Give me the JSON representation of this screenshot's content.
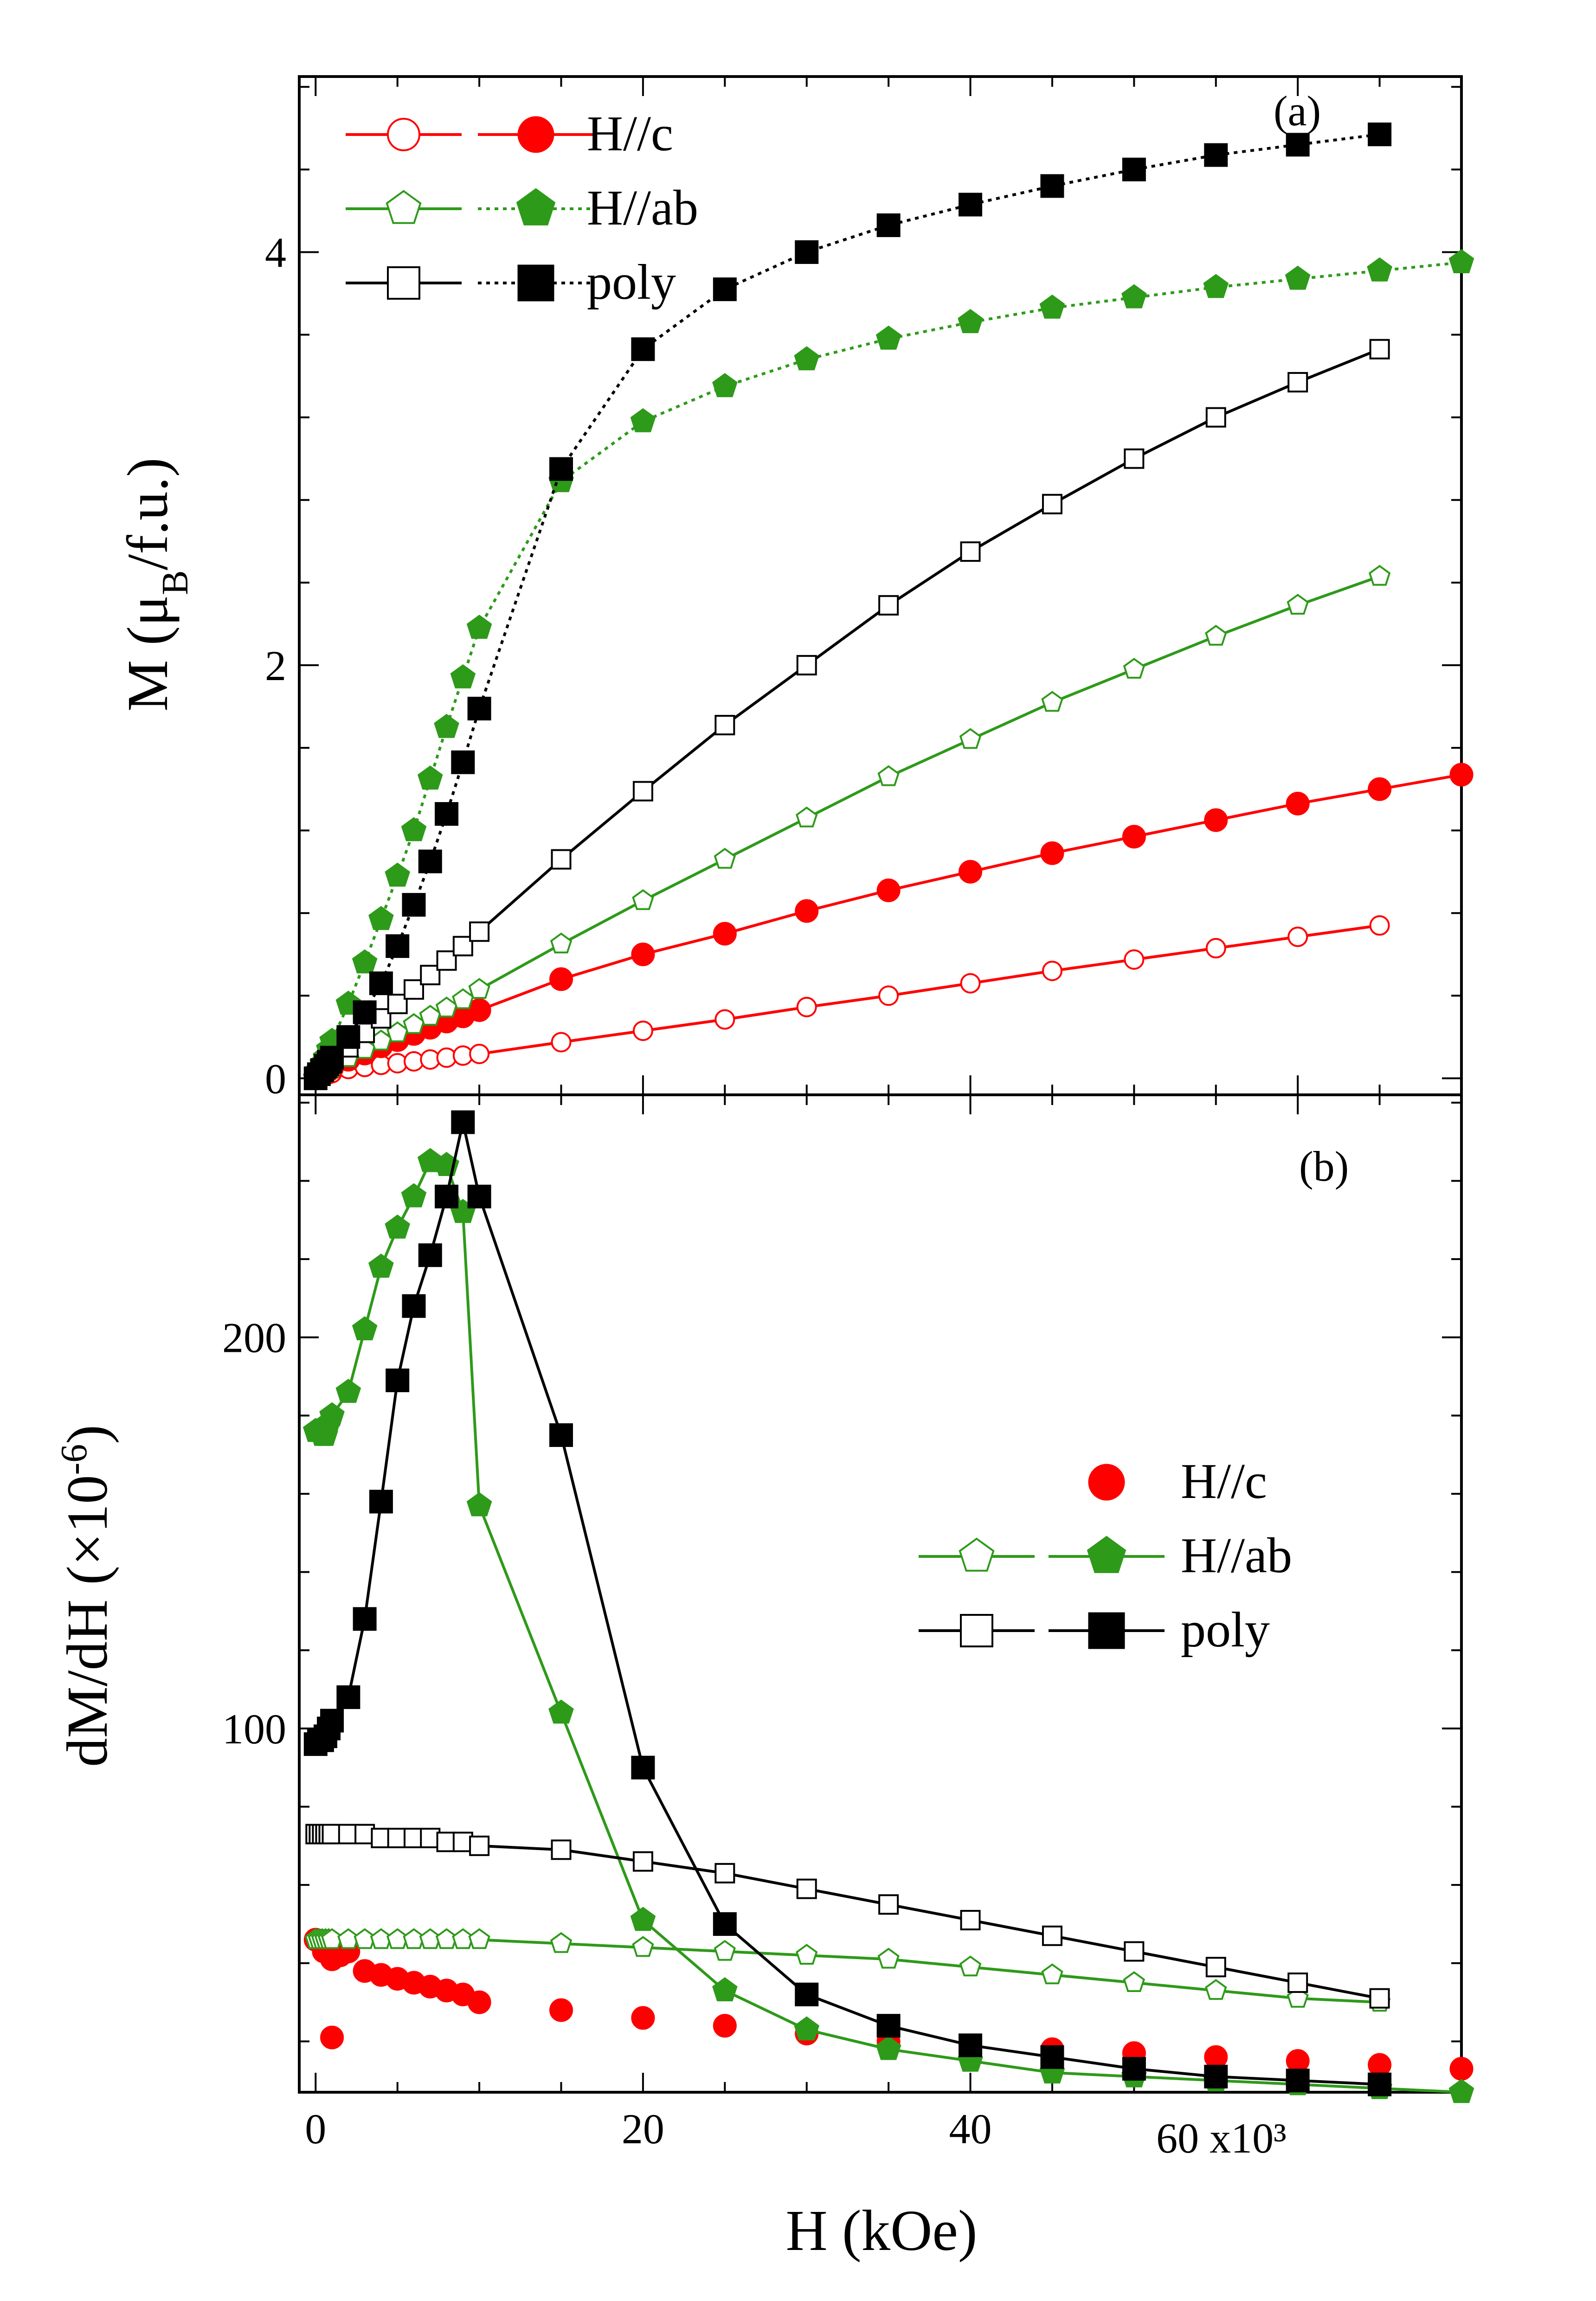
{
  "figure": {
    "x_label": "H (kOe)",
    "x_tick_labels": [
      "0",
      "20",
      "40",
      "60 x10³"
    ],
    "colors": {
      "hc": "#ff0000",
      "hab": "#2e9a1a",
      "poly": "#000000"
    }
  },
  "chart_data": [
    {
      "type": "line",
      "panel": "(a)",
      "ylabel_main": "M (μ",
      "ylabel_sub": "B",
      "ylabel_tail": "/f.u.)",
      "xlim": [
        -1,
        70
      ],
      "ylim": [
        -0.08,
        4.85
      ],
      "y_ticks": [
        0,
        2,
        4
      ],
      "y_tick_labels": [
        "0",
        "2",
        "4"
      ],
      "legend": {
        "position": "top-left",
        "entries": [
          {
            "label": "H//c",
            "color": "#ff0000",
            "open_marker": "circle",
            "filled_marker": "circle",
            "dashed_line": false
          },
          {
            "label": "H//ab",
            "color": "#2e9a1a",
            "open_marker": "pentagon",
            "filled_marker": "pentagon",
            "dashed_line": true
          },
          {
            "label": "poly",
            "color": "#000000",
            "open_marker": "square",
            "filled_marker": "square",
            "dashed_line": true
          }
        ]
      },
      "series": [
        {
          "name": "H//c open",
          "color": "#ff0000",
          "marker": "circle",
          "filled": false,
          "line": "solid",
          "x": [
            0,
            0.2,
            0.4,
            0.6,
            0.8,
            1,
            2,
            3,
            4,
            5,
            6,
            7,
            8,
            9,
            10,
            15,
            20,
            25,
            30,
            35,
            40,
            45,
            50,
            55,
            60,
            65
          ],
          "y": [
            0,
            0.005,
            0.01,
            0.015,
            0.02,
            0.025,
            0.045,
            0.055,
            0.065,
            0.073,
            0.082,
            0.091,
            0.1,
            0.11,
            0.118,
            0.175,
            0.23,
            0.285,
            0.345,
            0.4,
            0.46,
            0.52,
            0.575,
            0.63,
            0.685,
            0.74
          ]
        },
        {
          "name": "H//c filled",
          "color": "#ff0000",
          "marker": "circle",
          "filled": true,
          "line": "solid",
          "x": [
            0,
            0.2,
            0.4,
            0.6,
            0.8,
            1,
            2,
            3,
            4,
            5,
            6,
            7,
            8,
            9,
            10,
            15,
            20,
            25,
            30,
            35,
            40,
            45,
            50,
            55,
            60,
            65,
            70
          ],
          "y": [
            0,
            0.01,
            0.02,
            0.03,
            0.04,
            0.05,
            0.09,
            0.12,
            0.155,
            0.185,
            0.215,
            0.245,
            0.275,
            0.3,
            0.33,
            0.48,
            0.6,
            0.7,
            0.81,
            0.91,
            1.0,
            1.09,
            1.17,
            1.25,
            1.33,
            1.4,
            1.47
          ]
        },
        {
          "name": "H//ab open",
          "color": "#2e9a1a",
          "marker": "pentagon",
          "filled": false,
          "line": "solid",
          "x": [
            0,
            0.2,
            0.4,
            0.6,
            0.8,
            1,
            2,
            3,
            4,
            5,
            6,
            7,
            8,
            9,
            10,
            15,
            20,
            25,
            30,
            35,
            40,
            45,
            50,
            55,
            60,
            65
          ],
          "y": [
            0,
            0.01,
            0.02,
            0.03,
            0.04,
            0.05,
            0.1,
            0.14,
            0.18,
            0.22,
            0.26,
            0.3,
            0.34,
            0.38,
            0.43,
            0.65,
            0.86,
            1.06,
            1.26,
            1.46,
            1.64,
            1.82,
            1.98,
            2.14,
            2.29,
            2.43
          ]
        },
        {
          "name": "H//ab filled",
          "color": "#2e9a1a",
          "marker": "pentagon",
          "filled": true,
          "line": "dotted",
          "x": [
            0,
            0.2,
            0.4,
            0.6,
            0.8,
            1,
            2,
            3,
            4,
            5,
            6,
            7,
            8,
            9,
            10,
            15,
            20,
            25,
            30,
            35,
            40,
            45,
            50,
            55,
            60,
            65,
            70
          ],
          "y": [
            0,
            0.04,
            0.07,
            0.1,
            0.14,
            0.18,
            0.36,
            0.56,
            0.77,
            0.98,
            1.2,
            1.45,
            1.7,
            1.94,
            2.18,
            2.89,
            3.18,
            3.35,
            3.48,
            3.58,
            3.66,
            3.73,
            3.78,
            3.83,
            3.87,
            3.91,
            3.95
          ]
        },
        {
          "name": "poly open",
          "color": "#000000",
          "marker": "square",
          "filled": false,
          "line": "solid",
          "x": [
            0,
            0.2,
            0.4,
            0.6,
            0.8,
            1,
            2,
            3,
            4,
            5,
            6,
            7,
            8,
            9,
            10,
            15,
            20,
            25,
            30,
            35,
            40,
            45,
            50,
            55,
            60,
            65
          ],
          "y": [
            0,
            0.015,
            0.03,
            0.045,
            0.06,
            0.075,
            0.15,
            0.22,
            0.29,
            0.36,
            0.43,
            0.5,
            0.57,
            0.64,
            0.71,
            1.06,
            1.39,
            1.71,
            2.0,
            2.29,
            2.55,
            2.78,
            3.0,
            3.2,
            3.37,
            3.53
          ]
        },
        {
          "name": "poly filled",
          "color": "#000000",
          "marker": "square",
          "filled": true,
          "line": "dotted",
          "x": [
            0,
            0.2,
            0.4,
            0.6,
            0.8,
            1,
            2,
            3,
            4,
            5,
            6,
            7,
            8,
            9,
            10,
            15,
            20,
            25,
            30,
            35,
            40,
            45,
            50,
            55,
            60,
            65
          ],
          "y": [
            0,
            0.02,
            0.04,
            0.06,
            0.08,
            0.1,
            0.2,
            0.32,
            0.46,
            0.64,
            0.84,
            1.05,
            1.28,
            1.53,
            1.79,
            2.95,
            3.53,
            3.82,
            4.0,
            4.13,
            4.23,
            4.32,
            4.4,
            4.47,
            4.52,
            4.57
          ]
        }
      ]
    },
    {
      "type": "line",
      "panel": "(b)",
      "ylabel_main": "dM/dH (×10",
      "ylabel_sup": "-6",
      "ylabel_tail": ")",
      "xlim": [
        -1,
        70
      ],
      "ylim": [
        7,
        262
      ],
      "y_ticks": [
        100,
        200
      ],
      "y_tick_labels": [
        "100",
        "200"
      ],
      "legend": {
        "position": "center-right",
        "entries": [
          {
            "label": "H//c",
            "color": "#ff0000",
            "open_marker": "",
            "filled_marker": "circle",
            "dashed_line": false
          },
          {
            "label": "H//ab",
            "color": "#2e9a1a",
            "open_marker": "pentagon",
            "filled_marker": "pentagon",
            "dashed_line": false
          },
          {
            "label": "poly",
            "color": "#000000",
            "open_marker": "square",
            "filled_marker": "square",
            "dashed_line": false
          }
        ]
      },
      "series": [
        {
          "name": "H//c filled",
          "color": "#ff0000",
          "marker": "circle",
          "filled": true,
          "line": "none",
          "x": [
            0,
            0.5,
            1,
            1.5,
            2,
            3,
            4,
            5,
            6,
            7,
            8,
            9,
            10,
            15,
            20,
            25,
            30,
            35,
            40,
            45,
            50,
            55,
            60,
            65,
            70
          ],
          "y": [
            46,
            43,
            41,
            42,
            43,
            38,
            37,
            36,
            35,
            34,
            33,
            32,
            30,
            28,
            26,
            24,
            22,
            20,
            19,
            18,
            17,
            16,
            15,
            14,
            13
          ]
        },
        {
          "name": "H//c extra point",
          "color": "#ff0000",
          "marker": "circle",
          "filled": true,
          "line": "none",
          "x": [
            1
          ],
          "y": [
            21
          ]
        },
        {
          "name": "H//ab open",
          "color": "#2e9a1a",
          "marker": "pentagon",
          "filled": false,
          "line": "solid",
          "x": [
            0,
            0.2,
            0.4,
            0.6,
            0.8,
            1,
            2,
            3,
            4,
            5,
            6,
            7,
            8,
            9,
            10,
            15,
            20,
            25,
            30,
            35,
            40,
            45,
            50,
            55,
            60,
            65
          ],
          "y": [
            46,
            46,
            46,
            46,
            46,
            46,
            46,
            46,
            46,
            46,
            46,
            46,
            46,
            46,
            46,
            45,
            44,
            43,
            42,
            41,
            39,
            37,
            35,
            33,
            31,
            30
          ]
        },
        {
          "name": "H//ab filled",
          "color": "#2e9a1a",
          "marker": "pentagon",
          "filled": true,
          "line": "solid",
          "x": [
            0,
            0.2,
            0.4,
            0.6,
            0.8,
            1,
            2,
            3,
            4,
            5,
            6,
            7,
            8,
            9,
            10,
            15,
            20,
            25,
            30,
            35,
            40,
            45,
            50,
            55,
            60,
            65,
            70
          ],
          "y": [
            176,
            176,
            175,
            175,
            178,
            180,
            186,
            202,
            218,
            228,
            236,
            245,
            244,
            232,
            157,
            104,
            51,
            33,
            23,
            18,
            15,
            12,
            11,
            10,
            9,
            8,
            7
          ]
        },
        {
          "name": "poly open",
          "color": "#000000",
          "marker": "square",
          "filled": false,
          "line": "solid",
          "x": [
            0,
            0.2,
            0.4,
            0.6,
            0.8,
            1,
            2,
            3,
            4,
            5,
            6,
            7,
            8,
            9,
            10,
            15,
            20,
            25,
            30,
            35,
            40,
            45,
            50,
            55,
            60,
            65
          ],
          "y": [
            73,
            73,
            73,
            73,
            73,
            73,
            73,
            73,
            72,
            72,
            72,
            72,
            71,
            71,
            70,
            69,
            66,
            63,
            59,
            55,
            51,
            47,
            43,
            39,
            35,
            31
          ]
        },
        {
          "name": "poly filled",
          "color": "#000000",
          "marker": "square",
          "filled": true,
          "line": "solid",
          "x": [
            0,
            0.2,
            0.4,
            0.6,
            0.8,
            1,
            2,
            3,
            4,
            5,
            6,
            7,
            8,
            9,
            10,
            15,
            20,
            25,
            30,
            35,
            40,
            45,
            50,
            55,
            60,
            65
          ],
          "y": [
            96,
            97,
            97,
            98,
            100,
            102,
            108,
            128,
            158,
            189,
            208,
            221,
            236,
            255,
            236,
            175,
            90,
            50,
            32,
            24,
            19,
            16,
            13,
            11,
            10,
            9
          ]
        }
      ]
    }
  ]
}
